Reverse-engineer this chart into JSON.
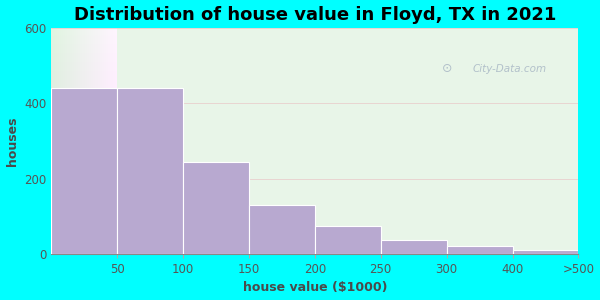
{
  "title": "Distribution of house value in Floyd, TX in 2021",
  "xlabel": "house value ($1000)",
  "ylabel": "houses",
  "bar_labels": [
    "50",
    "100",
    "150",
    "200",
    "250",
    "300",
    "400",
    ">500"
  ],
  "values": [
    440,
    440,
    245,
    130,
    75,
    38,
    22,
    10
  ],
  "bar_color": "#b8a9d0",
  "bar_edge_color": "#ffffff",
  "ylim": [
    0,
    600
  ],
  "yticks": [
    0,
    200,
    400,
    600
  ],
  "background_color": "#00ffff",
  "title_fontsize": 13,
  "label_fontsize": 9,
  "tick_fontsize": 8.5,
  "watermark_text": "City-Data.com",
  "title_color": "#000000",
  "axis_label_color": "#4a4a4a",
  "gradient_top_color": "#d6edd6",
  "gradient_bottom_color": "#f0fff0"
}
